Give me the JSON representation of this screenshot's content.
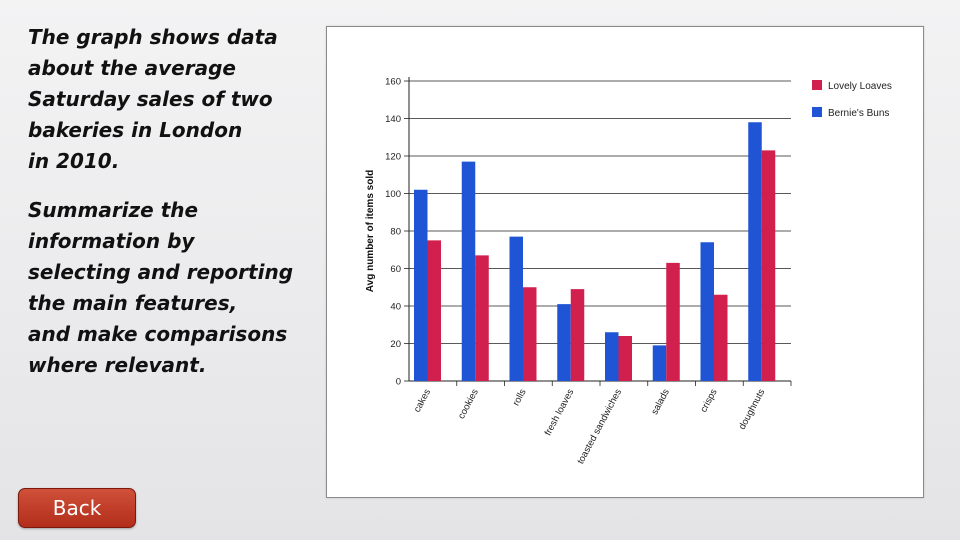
{
  "prompt": {
    "paragraph1": [
      "The graph shows data",
      "about the average",
      "Saturday sales of two",
      "bakeries in London",
      "in 2010."
    ],
    "paragraph2": [
      "Summarize the",
      "information by",
      "selecting and reporting",
      "the main features,",
      "and make comparisons",
      "where relevant."
    ]
  },
  "navigation": {
    "back_label": "Back",
    "back_color": "#c0392b"
  },
  "chart_data": {
    "type": "bar",
    "title": "",
    "xlabel": "",
    "ylabel": "Avg number of items sold",
    "ylim": [
      0,
      160
    ],
    "yticks": [
      "0",
      "20",
      "40",
      "60",
      "80",
      "100",
      "120",
      "140",
      "160"
    ],
    "grid": true,
    "legend_position": "top-right",
    "categories": [
      "cakes",
      "cookies",
      "rolls",
      "fresh loaves",
      "toasted sandwiches",
      "salads",
      "crisps",
      "doughnuts"
    ],
    "series": [
      {
        "name": "Bernie's Buns",
        "color": "#1f55d4",
        "values": [
          102,
          117,
          77,
          41,
          26,
          19,
          74,
          138
        ]
      },
      {
        "name": "Lovely Loaves",
        "color": "#d11f4e",
        "values": [
          75,
          67,
          50,
          49,
          24,
          63,
          46,
          123
        ]
      }
    ]
  }
}
